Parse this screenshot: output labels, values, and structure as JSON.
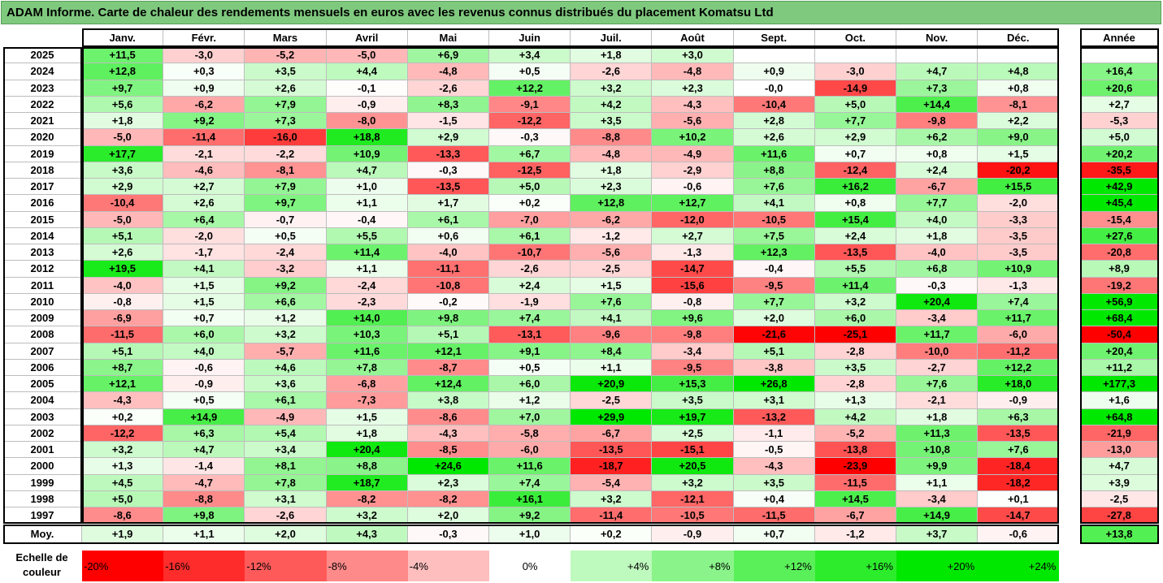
{
  "title": "ADAM Informe. Carte de chaleur des rendements mensuels en euros avec les revenus connus distribués du placement Komatsu Ltd",
  "chart_data": {
    "type": "heatmap",
    "months": [
      "Janv.",
      "Févr.",
      "Mars",
      "Avril",
      "Mai",
      "Juin",
      "Juil.",
      "Août",
      "Sept.",
      "Oct.",
      "Nov.",
      "Déc."
    ],
    "year_header": "Année",
    "rows": [
      {
        "year": "2025",
        "values": [
          "+11,5",
          "-3,0",
          "-5,2",
          "-5,0",
          "+6,9",
          "+3,4",
          "+1,8",
          "+3,0",
          "",
          "",
          "",
          ""
        ],
        "total": ""
      },
      {
        "year": "2024",
        "values": [
          "+12,8",
          "+0,3",
          "+3,5",
          "+4,4",
          "-4,8",
          "+0,5",
          "-2,6",
          "-4,8",
          "+0,9",
          "-3,0",
          "+4,7",
          "+4,8"
        ],
        "total": "+16,4"
      },
      {
        "year": "2023",
        "values": [
          "+9,7",
          "+0,9",
          "+2,6",
          "-0,1",
          "-2,6",
          "+12,2",
          "+3,2",
          "+2,3",
          "-0,0",
          "-14,9",
          "+7,3",
          "+0,8"
        ],
        "total": "+20,6"
      },
      {
        "year": "2022",
        "values": [
          "+5,6",
          "-6,2",
          "+7,9",
          "-0,9",
          "+8,3",
          "-9,1",
          "+4,2",
          "-4,3",
          "-10,4",
          "+5,0",
          "+14,4",
          "-8,1"
        ],
        "total": "+2,7"
      },
      {
        "year": "2021",
        "values": [
          "+1,8",
          "+9,2",
          "+7,3",
          "-8,0",
          "-1,5",
          "-12,2",
          "+3,5",
          "-5,6",
          "+2,8",
          "+7,7",
          "-9,8",
          "+2,2"
        ],
        "total": "-5,3"
      },
      {
        "year": "2020",
        "values": [
          "-5,0",
          "-11,4",
          "-16,0",
          "+18,8",
          "+2,9",
          "-0,3",
          "-8,8",
          "+10,2",
          "+2,6",
          "+2,9",
          "+6,2",
          "+9,0"
        ],
        "total": "+5,0"
      },
      {
        "year": "2019",
        "values": [
          "+17,7",
          "-2,1",
          "-2,2",
          "+10,9",
          "-13,3",
          "+6,7",
          "-4,8",
          "-4,9",
          "+11,6",
          "+0,7",
          "+0,8",
          "+1,5"
        ],
        "total": "+20,2"
      },
      {
        "year": "2018",
        "values": [
          "+3,6",
          "-4,6",
          "-8,1",
          "+4,7",
          "-0,3",
          "-12,5",
          "+1,8",
          "-2,9",
          "+8,8",
          "-12,4",
          "+2,4",
          "-20,2"
        ],
        "total": "-35,5"
      },
      {
        "year": "2017",
        "values": [
          "+2,9",
          "+2,7",
          "+7,9",
          "+1,0",
          "-13,5",
          "+5,0",
          "+2,3",
          "-0,6",
          "+7,6",
          "+16,2",
          "-6,7",
          "+15,5"
        ],
        "total": "+42,9"
      },
      {
        "year": "2016",
        "values": [
          "-10,4",
          "+2,6",
          "+9,7",
          "+1,1",
          "+1,7",
          "+0,2",
          "+12,8",
          "+12,7",
          "+4,1",
          "+0,8",
          "+7,7",
          "-2,0"
        ],
        "total": "+45,4"
      },
      {
        "year": "2015",
        "values": [
          "-5,0",
          "+6,4",
          "-0,7",
          "-0,4",
          "+6,1",
          "-7,0",
          "-6,2",
          "-12,0",
          "-10,5",
          "+15,4",
          "+4,0",
          "-3,3"
        ],
        "total": "-15,4"
      },
      {
        "year": "2014",
        "values": [
          "+5,1",
          "-2,0",
          "+0,5",
          "+5,5",
          "+0,6",
          "+6,1",
          "-1,2",
          "+2,7",
          "+7,5",
          "+2,4",
          "+1,8",
          "-3,5"
        ],
        "total": "+27,6"
      },
      {
        "year": "2013",
        "values": [
          "+2,6",
          "-1,7",
          "-2,4",
          "+11,4",
          "-4,0",
          "-10,7",
          "-5,6",
          "-1,3",
          "+12,3",
          "-13,5",
          "-4,0",
          "-3,5"
        ],
        "total": "-20,8"
      },
      {
        "year": "2012",
        "values": [
          "+19,5",
          "+4,1",
          "-3,2",
          "+1,1",
          "-11,1",
          "-2,6",
          "-2,5",
          "-14,7",
          "-0,4",
          "+5,5",
          "+6,8",
          "+10,9"
        ],
        "total": "+8,9"
      },
      {
        "year": "2011",
        "values": [
          "-4,0",
          "+1,5",
          "+9,2",
          "-2,4",
          "-10,8",
          "+2,4",
          "+1,5",
          "-15,6",
          "-9,5",
          "+11,4",
          "-0,3",
          "-1,3"
        ],
        "total": "-19,2"
      },
      {
        "year": "2010",
        "values": [
          "-0,8",
          "+1,5",
          "+6,6",
          "-2,3",
          "-0,2",
          "-1,9",
          "+7,6",
          "-0,8",
          "+7,7",
          "+3,2",
          "+20,4",
          "+7,4"
        ],
        "total": "+56,9"
      },
      {
        "year": "2009",
        "values": [
          "-6,9",
          "+0,7",
          "+1,2",
          "+14,0",
          "+9,8",
          "+7,4",
          "+4,1",
          "+9,6",
          "+2,0",
          "+6,0",
          "-3,4",
          "+11,7"
        ],
        "total": "+68,4"
      },
      {
        "year": "2008",
        "values": [
          "-11,5",
          "+6,0",
          "+3,2",
          "+10,3",
          "+5,1",
          "-13,1",
          "-9,6",
          "-9,8",
          "-21,6",
          "-25,1",
          "+11,7",
          "-6,0"
        ],
        "total": "-50,4"
      },
      {
        "year": "2007",
        "values": [
          "+5,1",
          "+4,0",
          "-5,7",
          "+11,6",
          "+12,1",
          "+9,1",
          "+8,4",
          "-3,4",
          "+5,1",
          "-2,8",
          "-10,0",
          "-11,2"
        ],
        "total": "+20,4"
      },
      {
        "year": "2006",
        "values": [
          "+8,7",
          "-0,6",
          "+4,6",
          "+7,8",
          "-8,7",
          "+0,5",
          "+1,1",
          "-9,5",
          "-3,8",
          "+3,5",
          "-2,7",
          "+12,2"
        ],
        "total": "+11,2"
      },
      {
        "year": "2005",
        "values": [
          "+12,1",
          "-0,9",
          "+3,6",
          "-6,8",
          "+12,4",
          "+6,0",
          "+20,9",
          "+15,3",
          "+26,8",
          "-2,8",
          "+7,6",
          "+18,0"
        ],
        "total": "+177,3"
      },
      {
        "year": "2004",
        "values": [
          "-4,3",
          "+0,5",
          "+6,1",
          "-7,3",
          "+3,8",
          "+1,2",
          "-2,5",
          "+3,5",
          "+3,1",
          "+1,3",
          "-2,1",
          "-0,9"
        ],
        "total": "+1,6"
      },
      {
        "year": "2003",
        "values": [
          "+0,2",
          "+14,9",
          "-4,9",
          "+1,5",
          "-8,6",
          "+7,0",
          "+29,9",
          "+19,7",
          "-13,2",
          "+4,2",
          "+1,8",
          "+6,3"
        ],
        "total": "+64,8"
      },
      {
        "year": "2002",
        "values": [
          "-12,2",
          "+6,3",
          "+5,4",
          "+1,8",
          "-4,3",
          "-5,8",
          "-6,7",
          "+2,5",
          "-1,1",
          "-5,2",
          "+11,3",
          "-13,5"
        ],
        "total": "-21,9"
      },
      {
        "year": "2001",
        "values": [
          "+3,2",
          "+4,7",
          "+3,4",
          "+20,4",
          "-8,5",
          "-6,0",
          "-13,5",
          "-15,1",
          "-0,5",
          "-13,8",
          "+10,8",
          "+7,6"
        ],
        "total": "-13,0"
      },
      {
        "year": "2000",
        "values": [
          "+1,3",
          "-1,4",
          "+8,1",
          "+8,8",
          "+24,6",
          "+11,6",
          "-18,7",
          "+20,5",
          "-4,3",
          "-23,9",
          "+9,9",
          "-18,4"
        ],
        "total": "+4,7"
      },
      {
        "year": "1999",
        "values": [
          "+4,5",
          "-4,7",
          "+7,8",
          "+18,7",
          "+2,3",
          "+7,4",
          "-5,4",
          "+3,2",
          "+3,5",
          "-11,5",
          "+1,1",
          "-18,2"
        ],
        "total": "+3,9"
      },
      {
        "year": "1998",
        "values": [
          "+5,0",
          "-8,8",
          "+3,1",
          "-8,2",
          "-8,2",
          "+16,1",
          "+3,2",
          "-12,1",
          "+0,4",
          "+14,5",
          "-3,4",
          "+0,1"
        ],
        "total": "-2,5"
      },
      {
        "year": "1997",
        "values": [
          "-8,6",
          "+9,8",
          "-2,6",
          "+3,2",
          "+2,0",
          "+9,2",
          "-11,4",
          "-10,5",
          "-11,5",
          "-6,7",
          "+14,9",
          "-14,7"
        ],
        "total": "-27,8"
      }
    ],
    "average": {
      "label": "Moy.",
      "values": [
        "+1,9",
        "+1,1",
        "+2,0",
        "+4,3",
        "-0,3",
        "+1,0",
        "+0,2",
        "-0,9",
        "+0,7",
        "-1,2",
        "+3,7",
        "-0,6"
      ],
      "total": "+13,8"
    },
    "scale": {
      "label": "Echelle de couleur",
      "steps": [
        "-20%",
        "-16%",
        "-12%",
        "-8%",
        "-4%",
        "0%",
        "+4%",
        "+8%",
        "+12%",
        "+16%",
        "+20%",
        "+24%"
      ],
      "step_values": [
        -20,
        -16,
        -12,
        -8,
        -4,
        0,
        4,
        8,
        12,
        16,
        20,
        24
      ]
    },
    "colors": {
      "negative": "#ff0000",
      "positive": "#00e800",
      "neutral": "#ffffff"
    }
  }
}
